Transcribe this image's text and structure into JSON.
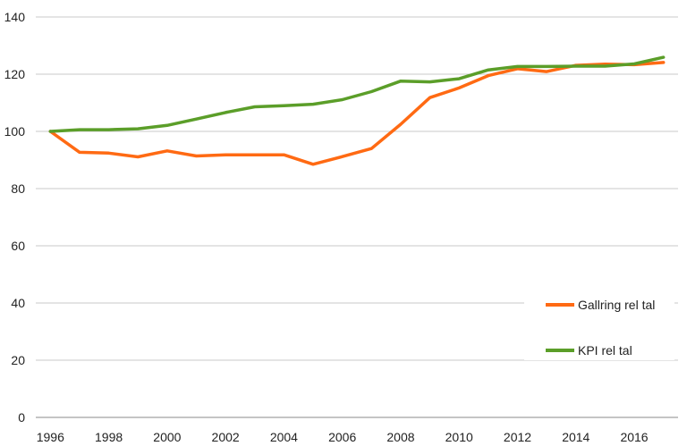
{
  "chart_data": {
    "type": "line",
    "title": "",
    "xlabel": "",
    "ylabel": "",
    "x": [
      1996,
      1997,
      1998,
      1999,
      2000,
      2001,
      2002,
      2003,
      2004,
      2005,
      2006,
      2007,
      2008,
      2009,
      2010,
      2011,
      2012,
      2013,
      2014,
      2015,
      2016,
      2017
    ],
    "x_ticks": [
      "1996",
      "1998",
      "2000",
      "2002",
      "2004",
      "2006",
      "2008",
      "2010",
      "2012",
      "2014",
      "2016"
    ],
    "ylim": [
      0,
      140
    ],
    "y_ticks": [
      "0",
      "20",
      "40",
      "60",
      "80",
      "100",
      "120",
      "140"
    ],
    "grid": true,
    "legend_position": "right",
    "series": [
      {
        "name": "Gallring rel tal",
        "color": "#ff6a13",
        "values": [
          100,
          92.7,
          92.4,
          91.1,
          93.2,
          91.4,
          91.8,
          91.8,
          91.8,
          88.5,
          91.2,
          94.0,
          102.5,
          111.8,
          115.2,
          119.5,
          121.9,
          120.9,
          123.1,
          123.5,
          123.3,
          124.1
        ]
      },
      {
        "name": "KPI rel tal",
        "color": "#5b9e29",
        "values": [
          100,
          100.6,
          100.6,
          100.9,
          102.1,
          104.3,
          106.6,
          108.6,
          109.0,
          109.5,
          111.1,
          113.9,
          117.6,
          117.3,
          118.4,
          121.5,
          122.7,
          122.7,
          122.8,
          122.8,
          123.6,
          125.9
        ]
      }
    ]
  }
}
